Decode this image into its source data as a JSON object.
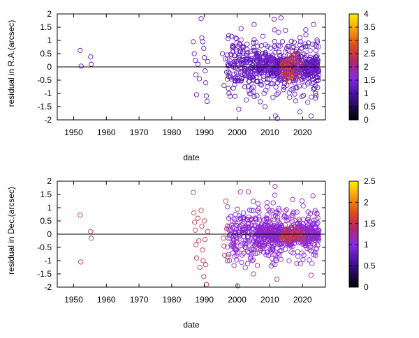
{
  "chart_data": [
    {
      "type": "scatter",
      "xlabel": "date",
      "ylabel": "residual in R.A.(arcsec)",
      "xlim": [
        1945,
        2027
      ],
      "ylim": [
        -2,
        2
      ],
      "xticks": [
        "1950",
        "1960",
        "1970",
        "1980",
        "1990",
        "2000",
        "2010",
        "2020"
      ],
      "yticks": [
        "-2",
        "-1.5",
        "-1",
        "-0.5",
        "0",
        "0.5",
        "1",
        "1.5",
        "2"
      ],
      "zero_line": true,
      "colorbar": {
        "range": [
          0,
          4
        ],
        "ticks": [
          "0",
          "0.5",
          "1",
          "1.5",
          "2",
          "2.5",
          "3",
          "3.5",
          "4"
        ]
      },
      "points": [
        [
          1952.0,
          0.62,
          1.2
        ],
        [
          1952.3,
          0.03,
          1.2
        ],
        [
          1955.2,
          0.38,
          1.2
        ],
        [
          1955.4,
          0.1,
          1.2
        ],
        [
          1986.6,
          0.95,
          1.2
        ],
        [
          1986.9,
          0.5,
          1.2
        ],
        [
          1987.2,
          0.25,
          1.2
        ],
        [
          1987.4,
          -0.3,
          1.2
        ],
        [
          1987.6,
          -1.05,
          1.2
        ],
        [
          1988.0,
          0.1,
          1.2
        ],
        [
          1988.5,
          -0.45,
          1.2
        ],
        [
          1989.0,
          1.82,
          1.2
        ],
        [
          1989.2,
          1.1,
          1.2
        ],
        [
          1989.5,
          0.95,
          1.2
        ],
        [
          1989.8,
          0.7,
          1.2
        ],
        [
          1990.0,
          0.35,
          1.2
        ],
        [
          1990.2,
          -0.15,
          1.2
        ],
        [
          1990.4,
          -0.6,
          1.2
        ],
        [
          1990.6,
          -1.1,
          1.2
        ],
        [
          1990.8,
          -1.3,
          1.2
        ],
        [
          1991.0,
          0.2,
          1.2
        ],
        [
          1995.5,
          0.5,
          1.2
        ],
        [
          1996.0,
          -0.7,
          1.2
        ],
        [
          1996.4,
          0.3,
          1.2
        ],
        [
          1996.8,
          -0.2,
          1.2
        ],
        [
          1997.2,
          0.1,
          1.2
        ],
        [
          1997.5,
          -1.0,
          1.2
        ],
        [
          1998.6,
          0.8,
          1.2
        ],
        [
          1999.4,
          -0.5,
          1.2
        ],
        [
          1999.8,
          0.2,
          1.2
        ],
        [
          2000.5,
          -1.6,
          1.2
        ],
        [
          2001.2,
          1.45,
          1.2
        ],
        [
          2002.8,
          -1.25,
          1.2
        ],
        [
          2005.2,
          1.6,
          1.2
        ],
        [
          2008.5,
          -1.5,
          1.2
        ],
        [
          2011.3,
          1.8,
          1.2
        ],
        [
          2011.7,
          -1.85,
          1.2
        ],
        [
          2012.3,
          -1.95,
          1.2
        ],
        [
          2013.4,
          1.85,
          1.2
        ],
        [
          2019.2,
          -1.7,
          1.2
        ],
        [
          2021.0,
          1.4,
          1.2
        ],
        [
          2022.6,
          -1.85,
          1.2
        ],
        [
          2023.4,
          1.6,
          1.2
        ],
        [
          2024.0,
          -1.0,
          1.2
        ],
        [
          2014.6,
          -0.3,
          2.5
        ],
        [
          2015.0,
          0.1,
          2.4
        ],
        [
          2015.4,
          -0.45,
          2.6
        ],
        [
          2016.0,
          0.3,
          2.3
        ],
        [
          2016.6,
          -0.2,
          2.7
        ],
        [
          2017.2,
          0.45,
          2.2
        ],
        [
          2017.8,
          -0.1,
          2.5
        ],
        [
          2018.4,
          0.2,
          2.1
        ],
        [
          2019.0,
          -0.35,
          2.2
        ],
        [
          2015.8,
          -0.55,
          2.8
        ],
        [
          2016.9,
          0.6,
          2.4
        ]
      ],
      "clusters": [
        {
          "x": [
            1997,
            2006
          ],
          "y": [
            -1.5,
            1.6
          ],
          "n": 170,
          "c": [
            0.9,
            1.6
          ]
        },
        {
          "x": [
            2006,
            2025
          ],
          "y": [
            -1.6,
            1.6
          ],
          "n": 330,
          "c": [
            0.9,
            1.6
          ]
        },
        {
          "x": [
            2006,
            2025
          ],
          "y": [
            -0.5,
            0.5
          ],
          "n": 260,
          "c": [
            0.9,
            1.7
          ]
        },
        {
          "x": [
            2013.5,
            2020
          ],
          "y": [
            -0.6,
            0.6
          ],
          "n": 45,
          "c": [
            2.0,
            3.0
          ]
        }
      ]
    },
    {
      "type": "scatter",
      "xlabel": "date",
      "ylabel": "residual in Dec.(arcsec)",
      "xlim": [
        1945,
        2027
      ],
      "ylim": [
        -2,
        2
      ],
      "xticks": [
        "1950",
        "1960",
        "1970",
        "1980",
        "1990",
        "2000",
        "2010",
        "2020"
      ],
      "yticks": [
        "-2",
        "-1.5",
        "-1",
        "-0.5",
        "0",
        "0.5",
        "1",
        "1.5",
        "2"
      ],
      "zero_line": true,
      "colorbar": {
        "range": [
          0,
          2.5
        ],
        "ticks": [
          "0",
          "0.5",
          "1",
          "1.5",
          "2",
          "2.5"
        ]
      },
      "points": [
        [
          1952.0,
          0.72,
          1.55
        ],
        [
          1952.2,
          -1.05,
          1.55
        ],
        [
          1955.2,
          0.1,
          1.55
        ],
        [
          1955.4,
          -0.15,
          1.55
        ],
        [
          1986.6,
          1.58,
          1.55
        ],
        [
          1986.8,
          0.8,
          1.55
        ],
        [
          1987.0,
          0.45,
          1.55
        ],
        [
          1987.2,
          0.15,
          1.55
        ],
        [
          1987.4,
          -0.4,
          1.55
        ],
        [
          1987.6,
          -0.9,
          1.55
        ],
        [
          1988.0,
          0.6,
          1.55
        ],
        [
          1988.3,
          -0.25,
          1.55
        ],
        [
          1988.6,
          -1.25,
          1.55
        ],
        [
          1989.0,
          0.9,
          1.55
        ],
        [
          1989.2,
          0.3,
          1.55
        ],
        [
          1989.4,
          -0.6,
          1.55
        ],
        [
          1989.6,
          -1.0,
          1.55
        ],
        [
          1989.8,
          -1.6,
          1.55
        ],
        [
          1990.0,
          0.5,
          1.55
        ],
        [
          1990.2,
          -0.2,
          1.55
        ],
        [
          1990.4,
          -1.15,
          1.55
        ],
        [
          1990.6,
          -1.9,
          1.55
        ],
        [
          1991.0,
          0.1,
          1.55
        ],
        [
          1995.8,
          -0.15,
          1.55
        ],
        [
          1996.0,
          -0.45,
          1.55
        ],
        [
          1996.2,
          -0.8,
          1.55
        ],
        [
          1996.5,
          1.25,
          1.55
        ],
        [
          1996.8,
          0.2,
          1.55
        ],
        [
          1997.0,
          -1.0,
          1.55
        ],
        [
          2000.2,
          -1.95,
          1.2
        ],
        [
          2001.0,
          1.6,
          1.2
        ],
        [
          2003.4,
          1.6,
          1.2
        ],
        [
          2005.0,
          -1.5,
          1.2
        ],
        [
          2011.6,
          1.8,
          1.2
        ],
        [
          2012.2,
          -1.7,
          1.2
        ],
        [
          2022.6,
          -1.55,
          1.2
        ],
        [
          2023.2,
          1.45,
          1.2
        ],
        [
          2015.0,
          0.1,
          1.6
        ],
        [
          2015.8,
          -0.15,
          1.7
        ],
        [
          2016.6,
          0.2,
          1.5
        ],
        [
          2017.2,
          -0.1,
          1.6
        ],
        [
          2014.4,
          0.05,
          1.45
        ],
        [
          2018.0,
          0.15,
          1.5
        ]
      ],
      "clusters": [
        {
          "x": [
            1997,
            2006
          ],
          "y": [
            -1.5,
            1.5
          ],
          "n": 170,
          "c": [
            0.9,
            1.15
          ]
        },
        {
          "x": [
            2006,
            2025
          ],
          "y": [
            -1.6,
            1.6
          ],
          "n": 330,
          "c": [
            0.9,
            1.15
          ]
        },
        {
          "x": [
            2006,
            2025
          ],
          "y": [
            -0.5,
            0.5
          ],
          "n": 260,
          "c": [
            0.9,
            1.2
          ]
        },
        {
          "x": [
            2013.5,
            2020
          ],
          "y": [
            -0.4,
            0.4
          ],
          "n": 35,
          "c": [
            1.35,
            1.7
          ]
        }
      ]
    }
  ]
}
